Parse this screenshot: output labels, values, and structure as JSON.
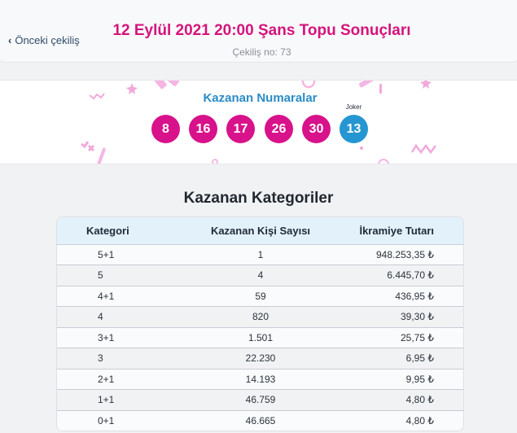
{
  "header": {
    "prev_label": "Önceki çekiliş",
    "title": "12 Eylül 2021 20:00 Şans Topu Sonuçları",
    "draw_number": "Çekiliş no: 73"
  },
  "winning": {
    "label": "Kazanan Numaralar",
    "numbers": [
      "8",
      "16",
      "17",
      "26",
      "30"
    ],
    "joker_label": "Joker",
    "joker": "13"
  },
  "categories": {
    "title": "Kazanan Kategoriler",
    "headers": [
      "Kategori",
      "Kazanan Kişi Sayısı",
      "İkramiye Tutarı"
    ],
    "rows": [
      [
        "5+1",
        "1",
        "948.253,35 ₺"
      ],
      [
        "5",
        "4",
        "6.445,70 ₺"
      ],
      [
        "4+1",
        "59",
        "436,95 ₺"
      ],
      [
        "4",
        "820",
        "39,30 ₺"
      ],
      [
        "3+1",
        "1.501",
        "25,75 ₺"
      ],
      [
        "3",
        "22.230",
        "6,95 ₺"
      ],
      [
        "2+1",
        "14.193",
        "9,95 ₺"
      ],
      [
        "1+1",
        "46.759",
        "4,80 ₺"
      ],
      [
        "0+1",
        "46.665",
        "4,80 ₺"
      ]
    ]
  },
  "colors": {
    "ball": "#d8128a",
    "joker_ball": "#2596d1",
    "title": "#d4147d"
  }
}
